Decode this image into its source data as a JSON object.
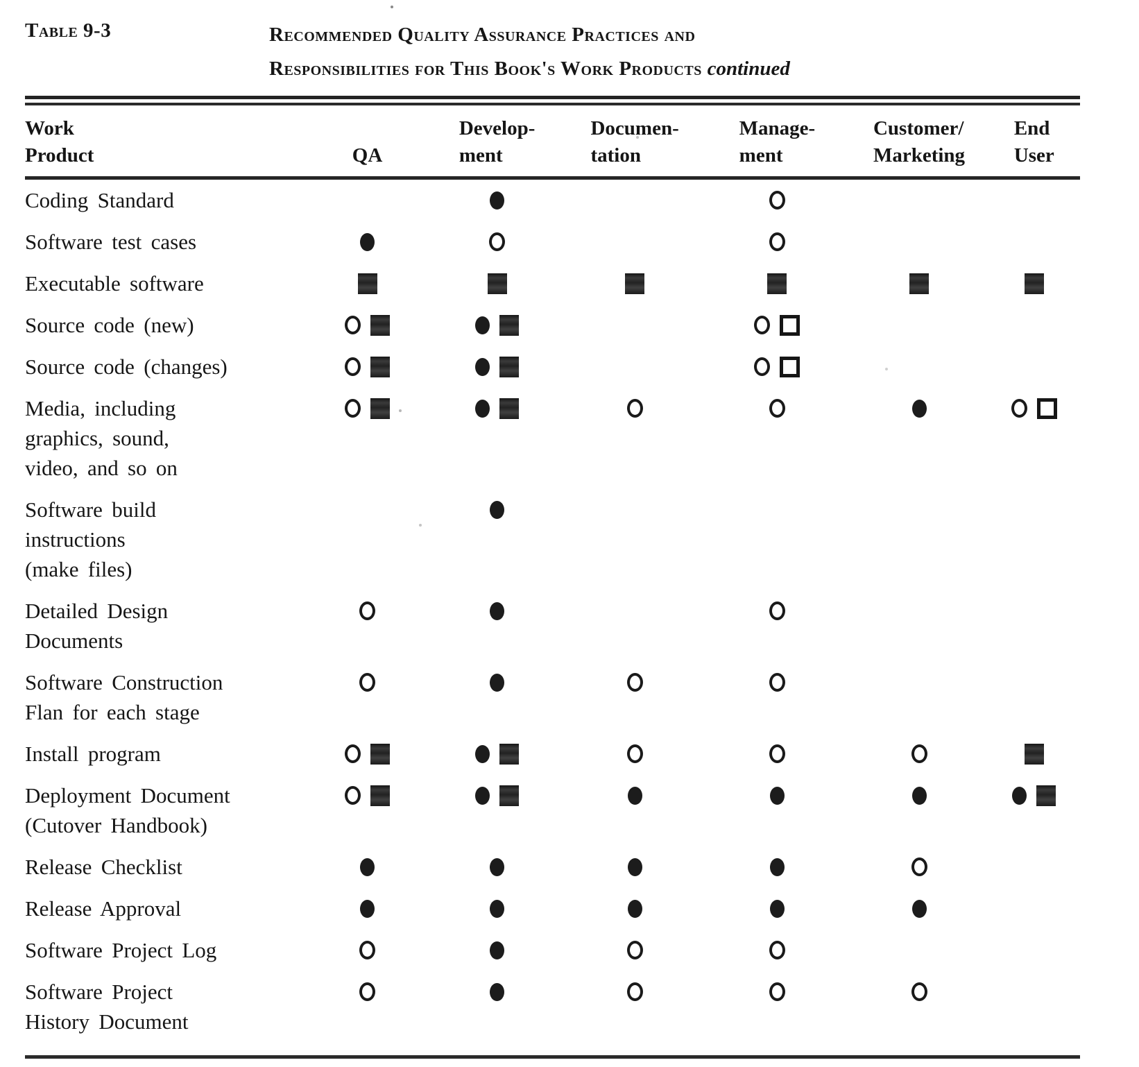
{
  "caption": {
    "label": "Table 9-3",
    "title_line1": "Recommended Quality Assurance Practices and",
    "title_line2": "Responsibilities for This Book's Work Products",
    "continued": "continued"
  },
  "table": {
    "columns": [
      {
        "line1": "Work",
        "line2": "Product"
      },
      {
        "line1": "",
        "line2": "QA"
      },
      {
        "line1": "Develop-",
        "line2": "ment"
      },
      {
        "line1": "Documen-",
        "line2": "tation"
      },
      {
        "line1": "Manage-",
        "line2": "ment"
      },
      {
        "line1": "Customer/",
        "line2": "Marketing"
      },
      {
        "line1": "End",
        "line2": "User"
      }
    ],
    "symbol_names": [
      "filled-circle",
      "open-circle",
      "filled-square",
      "open-square"
    ],
    "rows": [
      {
        "label_lines": [
          "Coding Standard"
        ],
        "cells": {
          "qa": [],
          "development": [
            "filled-circle"
          ],
          "documentation": [],
          "management": [
            "open-circle"
          ],
          "customer_marketing": [],
          "end_user": []
        }
      },
      {
        "label_lines": [
          "Software test cases"
        ],
        "cells": {
          "qa": [
            "filled-circle"
          ],
          "development": [
            "open-circle"
          ],
          "documentation": [],
          "management": [
            "open-circle"
          ],
          "customer_marketing": [],
          "end_user": []
        }
      },
      {
        "label_lines": [
          "Executable software"
        ],
        "cells": {
          "qa": [
            "filled-square"
          ],
          "development": [
            "filled-square"
          ],
          "documentation": [
            "filled-square"
          ],
          "management": [
            "filled-square"
          ],
          "customer_marketing": [
            "filled-square"
          ],
          "end_user": [
            "filled-square"
          ]
        }
      },
      {
        "label_lines": [
          "Source code (new)"
        ],
        "cells": {
          "qa": [
            "open-circle",
            "filled-square"
          ],
          "development": [
            "filled-circle",
            "filled-square"
          ],
          "documentation": [],
          "management": [
            "open-circle",
            "open-square"
          ],
          "customer_marketing": [],
          "end_user": []
        }
      },
      {
        "label_lines": [
          "Source code (changes)"
        ],
        "cells": {
          "qa": [
            "open-circle",
            "filled-square"
          ],
          "development": [
            "filled-circle",
            "filled-square"
          ],
          "documentation": [],
          "management": [
            "open-circle",
            "open-square"
          ],
          "customer_marketing": [],
          "end_user": []
        }
      },
      {
        "label_lines": [
          "Media, including",
          "graphics, sound,",
          "video, and so on"
        ],
        "cells": {
          "qa": [
            "open-circle",
            "filled-square"
          ],
          "development": [
            "filled-circle",
            "filled-square"
          ],
          "documentation": [
            "open-circle"
          ],
          "management": [
            "open-circle"
          ],
          "customer_marketing": [
            "filled-circle"
          ],
          "end_user": [
            "open-circle",
            "open-square"
          ]
        }
      },
      {
        "label_lines": [
          "Software build",
          "instructions",
          "(make files)"
        ],
        "cells": {
          "qa": [],
          "development": [
            "filled-circle"
          ],
          "documentation": [],
          "management": [],
          "customer_marketing": [],
          "end_user": []
        }
      },
      {
        "label_lines": [
          "Detailed Design",
          "Documents"
        ],
        "cells": {
          "qa": [
            "open-circle"
          ],
          "development": [
            "filled-circle"
          ],
          "documentation": [],
          "management": [
            "open-circle"
          ],
          "customer_marketing": [],
          "end_user": []
        }
      },
      {
        "label_lines": [
          "Software Construction",
          "Flan for each stage"
        ],
        "cells": {
          "qa": [
            "open-circle"
          ],
          "development": [
            "filled-circle"
          ],
          "documentation": [
            "open-circle"
          ],
          "management": [
            "open-circle"
          ],
          "customer_marketing": [],
          "end_user": []
        }
      },
      {
        "label_lines": [
          "Install program"
        ],
        "cells": {
          "qa": [
            "open-circle",
            "filled-square"
          ],
          "development": [
            "filled-circle",
            "filled-square"
          ],
          "documentation": [
            "open-circle"
          ],
          "management": [
            "open-circle"
          ],
          "customer_marketing": [
            "open-circle"
          ],
          "end_user": [
            "filled-square"
          ]
        }
      },
      {
        "label_lines": [
          "Deployment Document",
          "(Cutover Handbook)"
        ],
        "cells": {
          "qa": [
            "open-circle",
            "filled-square"
          ],
          "development": [
            "filled-circle",
            "filled-square"
          ],
          "documentation": [
            "filled-circle"
          ],
          "management": [
            "filled-circle"
          ],
          "customer_marketing": [
            "filled-circle"
          ],
          "end_user": [
            "filled-circle",
            "filled-square"
          ]
        }
      },
      {
        "label_lines": [
          "Release Checklist"
        ],
        "cells": {
          "qa": [
            "filled-circle"
          ],
          "development": [
            "filled-circle"
          ],
          "documentation": [
            "filled-circle"
          ],
          "management": [
            "filled-circle"
          ],
          "customer_marketing": [
            "open-circle"
          ],
          "end_user": []
        }
      },
      {
        "label_lines": [
          "Release Approval"
        ],
        "cells": {
          "qa": [
            "filled-circle"
          ],
          "development": [
            "filled-circle"
          ],
          "documentation": [
            "filled-circle"
          ],
          "management": [
            "filled-circle"
          ],
          "customer_marketing": [
            "filled-circle"
          ],
          "end_user": []
        }
      },
      {
        "label_lines": [
          "Software Project Log"
        ],
        "cells": {
          "qa": [
            "open-circle"
          ],
          "development": [
            "filled-circle"
          ],
          "documentation": [
            "open-circle"
          ],
          "management": [
            "open-circle"
          ],
          "customer_marketing": [],
          "end_user": []
        }
      },
      {
        "label_lines": [
          "Software Project",
          "History Document"
        ],
        "cells": {
          "qa": [
            "open-circle"
          ],
          "development": [
            "filled-circle"
          ],
          "documentation": [
            "open-circle"
          ],
          "management": [
            "open-circle"
          ],
          "customer_marketing": [
            "open-circle"
          ],
          "end_user": []
        }
      }
    ]
  }
}
